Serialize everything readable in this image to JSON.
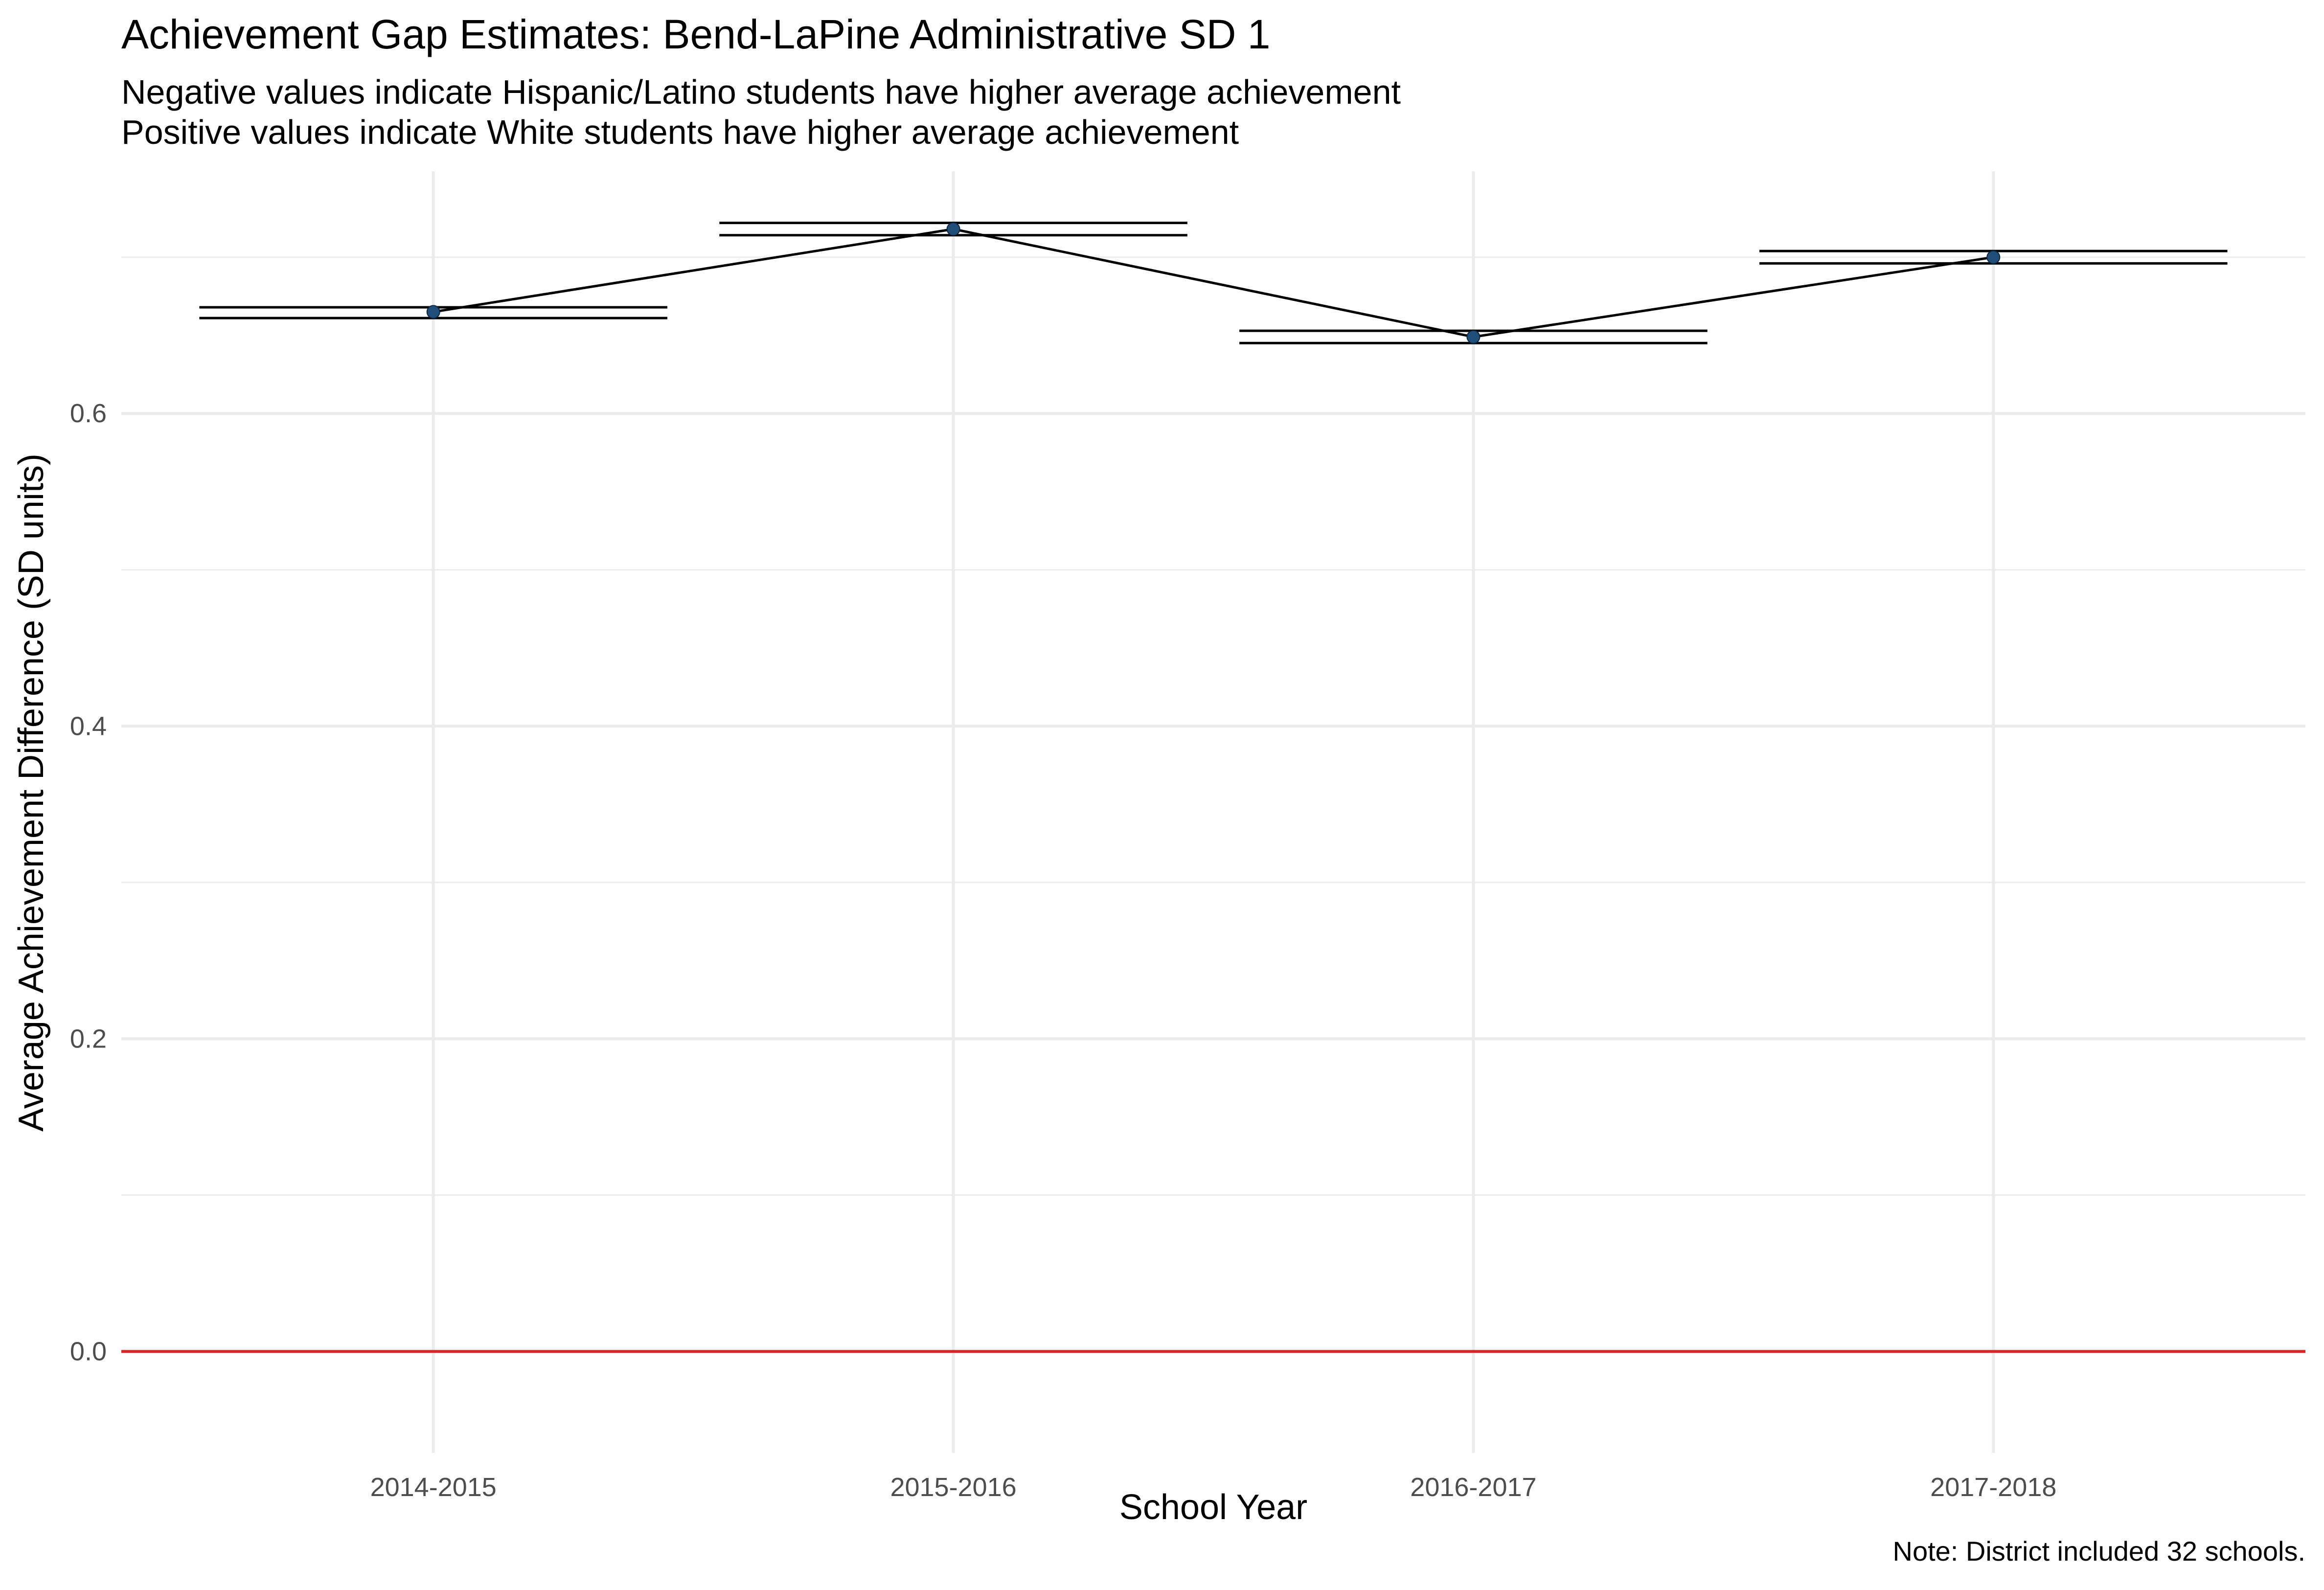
{
  "chart_data": {
    "type": "line",
    "title": "Achievement Gap Estimates: Bend-LaPine Administrative SD 1",
    "subtitle_lines": [
      "Negative values indicate Hispanic/Latino students have higher average achievement",
      "Positive values indicate White students have higher average achievement"
    ],
    "xlabel": "School Year",
    "ylabel": "Average Achievement Difference (SD units)",
    "caption": "Note: District included 32 schools.",
    "categories": [
      "2014-2015",
      "2015-2016",
      "2016-2017",
      "2017-2018"
    ],
    "series": [
      {
        "values": [
          0.665,
          0.718,
          0.649,
          0.7
        ],
        "ci_lower": [
          0.662,
          0.715,
          0.646,
          0.697
        ],
        "ci_upper": [
          0.667,
          0.721,
          0.652,
          0.703
        ]
      }
    ],
    "y_ticks": [
      0.0,
      0.2,
      0.4,
      0.6
    ],
    "y_tick_labels": [
      "0.0",
      "0.2",
      "0.4",
      "0.6"
    ],
    "ylim": [
      -0.065,
      0.755
    ],
    "reference_line": {
      "y": 0,
      "color": "#d62728"
    },
    "colors": {
      "line": "#000000",
      "point": "#1f4e79",
      "grid": "#ebebeb",
      "tick_text": "#4d4d4d"
    },
    "grid": true,
    "legend": "none"
  }
}
